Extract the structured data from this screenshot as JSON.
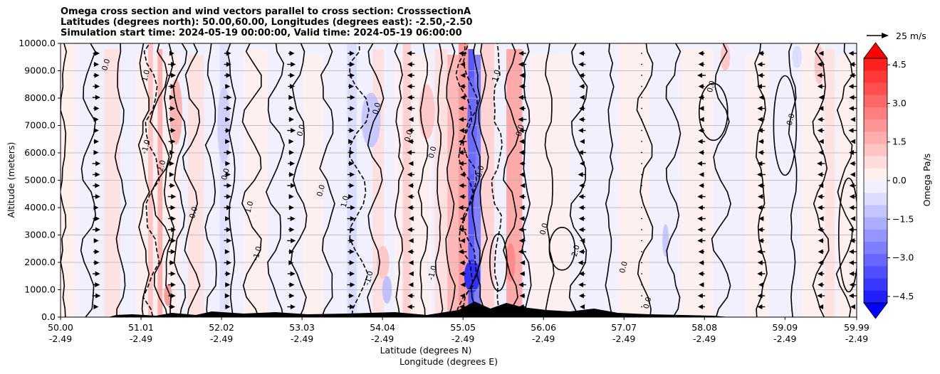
{
  "chart_data": {
    "type": "heatmap",
    "title": [
      "Omega cross section and wind vectors parallel to cross section: CrosssectionA",
      "Latitudes (degrees north): 50.00,60.00, Longitudes (degrees east): -2.50,-2.50",
      "Simulation start time: 2024-05-19 00:00:00, Valid time: 2024-05-19 06:00:00"
    ],
    "xlabel": "Latitude (degrees N)",
    "xlabel2": "Longitude (degrees E)",
    "ylabel": "Altitude (meters)",
    "x_ticks": [
      {
        "lat": "50.00",
        "lon": "-2.49"
      },
      {
        "lat": "51.01",
        "lon": "-2.49"
      },
      {
        "lat": "52.02",
        "lon": "-2.49"
      },
      {
        "lat": "53.03",
        "lon": "-2.49"
      },
      {
        "lat": "54.04",
        "lon": "-2.49"
      },
      {
        "lat": "55.05",
        "lon": "-2.49"
      },
      {
        "lat": "56.06",
        "lon": "-2.49"
      },
      {
        "lat": "57.07",
        "lon": "-2.49"
      },
      {
        "lat": "58.08",
        "lon": "-2.49"
      },
      {
        "lat": "59.09",
        "lon": "-2.49"
      },
      {
        "lat": "59.99",
        "lon": "-2.49"
      }
    ],
    "xlim": [
      50.0,
      59.99
    ],
    "y_ticks": [
      "0.0",
      "1000.0",
      "2000.0",
      "3000.0",
      "4000.0",
      "5000.0",
      "6000.0",
      "7000.0",
      "8000.0",
      "9000.0",
      "10000.0"
    ],
    "ylim": [
      0,
      10000
    ],
    "grid": "horizontal",
    "colorbar": {
      "label": "Omega Pa/s",
      "ticks": [
        "4.5",
        "3.0",
        "1.5",
        "0.0",
        "−1.5",
        "−3.0",
        "−4.5"
      ],
      "range": [
        -5,
        5
      ],
      "extend": "both",
      "colormap": "bwr"
    },
    "quiver_key": "25 m/s",
    "contour_labels": [
      "0.0",
      "1.0",
      "-1.0",
      "2.0",
      "0.0",
      "0.0",
      "1.0",
      "-1.0",
      "0.0",
      "0.0",
      "1.0",
      "-1.0",
      "0.0",
      "0.0",
      "0.0",
      "0.0",
      "1.0",
      "-1.0",
      "0.0",
      "0.0",
      "2.0",
      "0.0",
      "0.0",
      "0.0",
      "0.0"
    ],
    "colors": {
      "positive": "#ff0000",
      "negative": "#0000ff",
      "neutral": "#f2f2ff",
      "terrain": "#000000"
    }
  }
}
